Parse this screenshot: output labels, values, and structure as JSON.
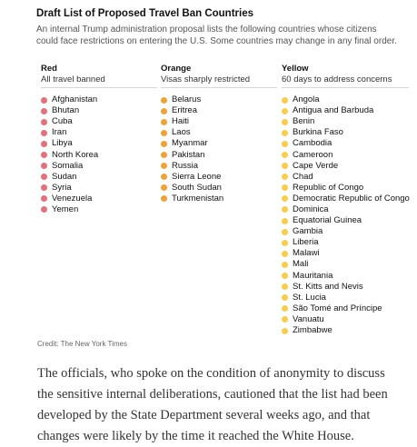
{
  "graphic": {
    "title": "Draft List of Proposed Travel Ban Countries",
    "subtitle": "An internal Trump administration proposal lists the following countries whose citizens could face restrictions on entering the U.S. Some countries may change in any final order.",
    "credit": "Credit: The New York Times",
    "colors": {
      "red": "#e0707a",
      "orange": "#f0a23a",
      "yellow": "#f7cc52"
    },
    "columns": [
      {
        "key": "red",
        "heading": "Red",
        "subheading": "All travel banned",
        "countries": [
          "Afghanistan",
          "Bhutan",
          "Cuba",
          "Iran",
          "Libya",
          "North Korea",
          "Somalia",
          "Sudan",
          "Syria",
          "Venezuela",
          "Yemen"
        ]
      },
      {
        "key": "orange",
        "heading": "Orange",
        "subheading": "Visas sharply restricted",
        "countries": [
          "Belarus",
          "Eritrea",
          "Haiti",
          "Laos",
          "Myanmar",
          "Pakistan",
          "Russia",
          "Sierra Leone",
          "South Sudan",
          "Turkmenistan"
        ]
      },
      {
        "key": "yellow",
        "heading": "Yellow",
        "subheading": "60 days to address concerns",
        "countries": [
          "Angola",
          "Antigua and Barbuda",
          "Benin",
          "Burkina Faso",
          "Cambodia",
          "Cameroon",
          "Cape Verde",
          "Chad",
          "Republic of Congo",
          "Democratic Republic of Congo",
          "Dominica",
          "Equatorial Guinea",
          "Gambia",
          "Liberia",
          "Malawi",
          "Mali",
          "Mauritania",
          "St. Kitts and Nevis",
          "St. Lucia",
          "São Tomé and Príncipe",
          "Vanuatu",
          "Zimbabwe"
        ]
      }
    ]
  },
  "article": {
    "paragraph": "The officials, who spoke on the condition of anonymity to discuss the sensitive internal deliberations, cautioned that the list had been developed by the State Department several weeks ago, and that changes were likely by the time it reached the White House."
  }
}
